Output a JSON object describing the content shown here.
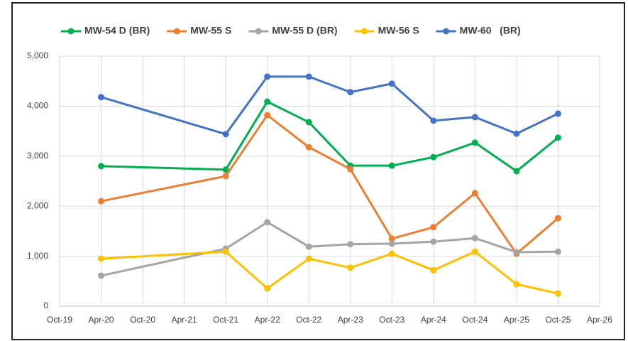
{
  "chart_data": {
    "type": "line",
    "x": [
      "Apr-20",
      "Oct-21",
      "Apr-22",
      "Oct-22",
      "Apr-23",
      "Oct-23",
      "Apr-24",
      "Oct-24",
      "Apr-25",
      "Oct-25"
    ],
    "xticks": [
      "Oct-19",
      "Apr-20",
      "Oct-20",
      "Apr-21",
      "Oct-21",
      "Apr-22",
      "Oct-22",
      "Apr-23",
      "Oct-23",
      "Apr-24",
      "Oct-24",
      "Apr-25",
      "Oct-25",
      "Apr-26"
    ],
    "ylim": [
      0,
      5000
    ],
    "yticks": [
      0,
      {
        "value": 1000,
        "label": "1,000"
      },
      {
        "value": 2000,
        "label": "2,000"
      },
      {
        "value": 3000,
        "label": "3,000"
      },
      {
        "value": 4000,
        "label": "4,000"
      },
      {
        "value": 5000,
        "label": "5,000"
      }
    ],
    "grid": true,
    "legend": "top",
    "series": [
      {
        "name": "MW-54 D (BR)",
        "color": "#00b050",
        "values": [
          2800,
          2730,
          4090,
          3680,
          2810,
          2810,
          2980,
          3270,
          2700,
          3370
        ]
      },
      {
        "name": "MW-55 S",
        "color": "#ed7d31",
        "values": [
          2100,
          2600,
          3820,
          3180,
          2740,
          1350,
          1580,
          2260,
          1050,
          1760
        ]
      },
      {
        "name": "MW-55 D (BR)",
        "color": "#a5a5a5",
        "values": [
          610,
          1150,
          1680,
          1190,
          1240,
          1250,
          1290,
          1360,
          1080,
          1090
        ]
      },
      {
        "name": "MW-56 S",
        "color": "#ffc000",
        "values": [
          950,
          1090,
          355,
          950,
          770,
          1050,
          720,
          1090,
          440,
          255
        ]
      },
      {
        "name": "MW-60   (BR)",
        "color": "#4472c4",
        "values": [
          4180,
          3440,
          4590,
          4590,
          4280,
          4450,
          3710,
          3780,
          3450,
          3850
        ]
      }
    ]
  }
}
